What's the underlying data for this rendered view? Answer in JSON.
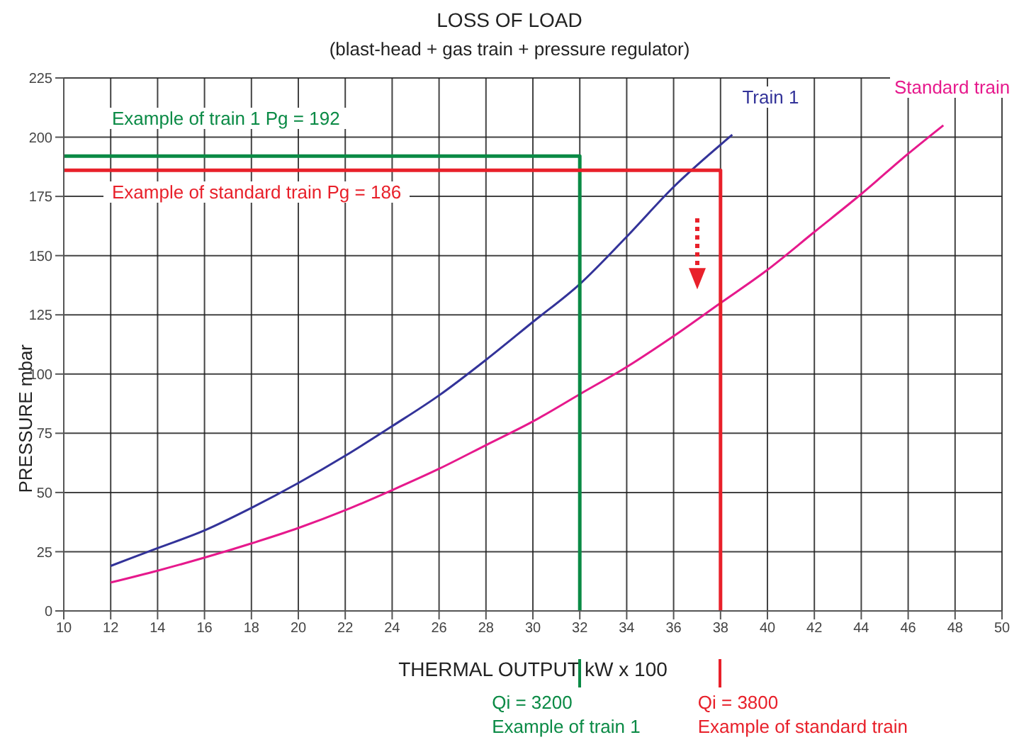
{
  "chart_data": {
    "type": "line",
    "title": "LOSS OF LOAD",
    "subtitle": "(blast-head + gas train + pressure regulator)",
    "xlabel": "THERMAL OUTPUT kW x 100",
    "ylabel": "PRESSURE mbar",
    "xlim": [
      10,
      50
    ],
    "xticks": [
      10,
      12,
      14,
      16,
      18,
      20,
      22,
      24,
      26,
      28,
      30,
      32,
      34,
      36,
      38,
      40,
      42,
      44,
      46,
      48,
      50
    ],
    "ylim": [
      0,
      225
    ],
    "yticks": [
      0,
      25,
      50,
      75,
      100,
      125,
      150,
      175,
      200,
      225
    ],
    "grid": true,
    "legend": false,
    "marker": "none",
    "line_style": "solid",
    "series": [
      {
        "name": "Train 1",
        "color": "#333399",
        "x": [
          12,
          14,
          16,
          18,
          20,
          22,
          24,
          26,
          28,
          30,
          32,
          34,
          36,
          38.5
        ],
        "values": [
          19,
          26.5,
          34,
          43.5,
          54,
          65.5,
          78,
          91,
          106,
          122,
          138,
          158,
          179,
          201
        ]
      },
      {
        "name": "Standard train",
        "color": "#e6198c",
        "x": [
          12,
          14,
          16,
          18,
          20,
          22,
          24,
          26,
          28,
          30,
          32,
          34,
          36,
          38,
          40,
          42,
          44,
          46,
          47.5
        ],
        "values": [
          12,
          17,
          22.5,
          28.5,
          35,
          42.5,
          51,
          60,
          70,
          80,
          91.5,
          103,
          116,
          130,
          144,
          160,
          176,
          193,
          205
        ]
      },
      {
        "color": "#0a8a45",
        "x": [
          10,
          32,
          32
        ],
        "values": [
          192,
          192,
          0
        ]
      },
      {
        "color": "#e8202a",
        "x": [
          10,
          38,
          38
        ],
        "values": [
          186,
          186,
          0
        ]
      }
    ],
    "annotations": [
      "Example of train 1 Pg = 192",
      "Example of standard train Pg = 186",
      "Qi = 3200\nExample of train 1",
      "Qi = 3800\nExample of standard train"
    ]
  }
}
